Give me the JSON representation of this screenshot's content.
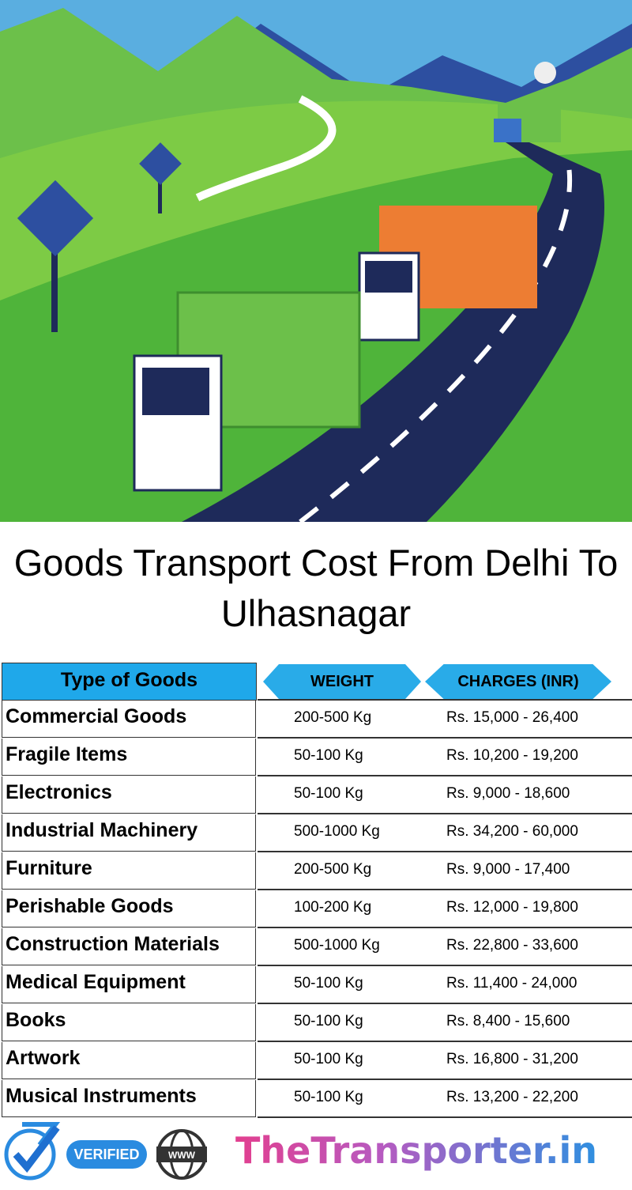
{
  "title": "Goods Transport Cost From Delhi To Ulhasnagar",
  "table": {
    "header": [
      "Type of Goods",
      "WEIGHT",
      "CHARGES (INR)"
    ],
    "rows": [
      [
        "Commercial Goods",
        "200-500 Kg",
        "Rs. 15,000 - 26,400"
      ],
      [
        "Fragile Items",
        "50-100 Kg",
        "Rs. 10,200 - 19,200"
      ],
      [
        "Electronics",
        "50-100 Kg",
        "Rs. 9,000 - 18,600"
      ],
      [
        "Industrial Machinery",
        "500-1000 Kg",
        "Rs. 34,200 - 60,000"
      ],
      [
        "Furniture",
        "200-500 Kg",
        "Rs. 9,000 - 17,400"
      ],
      [
        "Perishable Goods",
        "100-200 Kg",
        "Rs. 12,000 - 19,800"
      ],
      [
        "Construction Materials",
        "500-1000 Kg",
        "Rs. 22,800 - 33,600"
      ],
      [
        "Medical Equipment",
        "50-100 Kg",
        "Rs. 11,400 - 24,000"
      ],
      [
        "Books",
        "50-100 Kg",
        "Rs. 8,400 - 15,600"
      ],
      [
        "Artwork",
        "50-100 Kg",
        "Rs. 16,800 - 31,200"
      ],
      [
        "Musical Instruments",
        "50-100 Kg",
        "Rs. 13,200 - 22,200"
      ]
    ]
  },
  "footer": {
    "badge": "VERIFIED",
    "globe": "WWW",
    "brand": "TheTransporter.in"
  }
}
